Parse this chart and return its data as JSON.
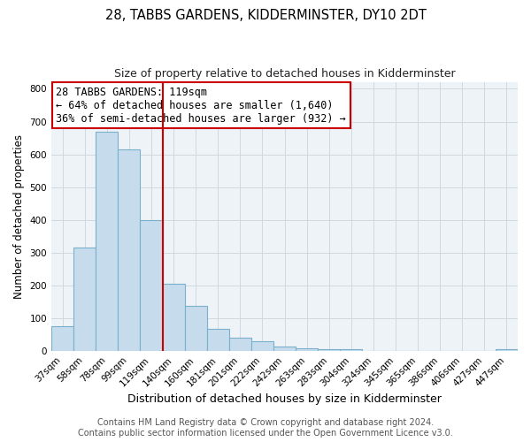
{
  "title": "28, TABBS GARDENS, KIDDERMINSTER, DY10 2DT",
  "subtitle": "Size of property relative to detached houses in Kidderminster",
  "xlabel": "Distribution of detached houses by size in Kidderminster",
  "ylabel": "Number of detached properties",
  "footer_line1": "Contains HM Land Registry data © Crown copyright and database right 2024.",
  "footer_line2": "Contains public sector information licensed under the Open Government Licence v3.0.",
  "bin_labels": [
    "37sqm",
    "58sqm",
    "78sqm",
    "99sqm",
    "119sqm",
    "140sqm",
    "160sqm",
    "181sqm",
    "201sqm",
    "222sqm",
    "242sqm",
    "263sqm",
    "283sqm",
    "304sqm",
    "324sqm",
    "345sqm",
    "365sqm",
    "386sqm",
    "406sqm",
    "427sqm",
    "447sqm"
  ],
  "bar_values": [
    75,
    315,
    668,
    615,
    400,
    205,
    137,
    68,
    40,
    29,
    15,
    10,
    5,
    5,
    0,
    0,
    0,
    0,
    0,
    0,
    5
  ],
  "bar_color": "#c6dcec",
  "bar_edge_color": "#7ab0cc",
  "property_line_index": 4,
  "property_line_color": "#cc0000",
  "ylim": [
    0,
    820
  ],
  "yticks": [
    0,
    100,
    200,
    300,
    400,
    500,
    600,
    700,
    800
  ],
  "annotation_text": "28 TABBS GARDENS: 119sqm\n← 64% of detached houses are smaller (1,640)\n36% of semi-detached houses are larger (932) →",
  "annotation_box_color": "#ffffff",
  "annotation_box_edge": "#cc0000",
  "annotation_fontsize": 8.5,
  "title_fontsize": 10.5,
  "subtitle_fontsize": 9,
  "xlabel_fontsize": 9,
  "ylabel_fontsize": 8.5,
  "tick_fontsize": 7.5,
  "footer_fontsize": 7,
  "bg_color": "#eef3f8"
}
